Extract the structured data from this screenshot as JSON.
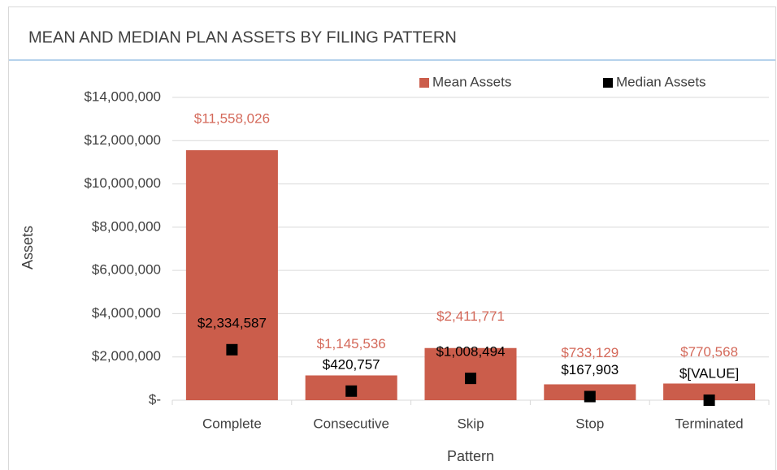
{
  "chart_data": {
    "type": "bar",
    "title": "MEAN AND MEDIAN PLAN ASSETS BY FILING PATTERN",
    "x_label": "Pattern",
    "y_label": "Assets",
    "categories": [
      "Complete",
      "Consecutive",
      "Skip",
      "Stop",
      "Terminated"
    ],
    "series": [
      {
        "name": "Mean Assets",
        "color": "#cb5d4b",
        "label_color": "#d4695a",
        "mark": "bar",
        "values": [
          11558026,
          1145536,
          2411771,
          733129,
          770568
        ],
        "value_labels": [
          "$11,558,026",
          "$1,145,536",
          "$2,411,771",
          "$733,129",
          "$770,568"
        ]
      },
      {
        "name": "Median Assets",
        "color": "#000000",
        "label_color": "#000000",
        "mark": "square",
        "values": [
          2334587,
          420757,
          1008494,
          167903,
          0
        ],
        "value_labels": [
          "$2,334,587",
          "$420,757",
          "$1,008,494",
          "$167,903",
          "$[VALUE]"
        ]
      }
    ],
    "ylim": [
      0,
      14000000
    ],
    "yticks": [
      {
        "value": 0,
        "label": "$-"
      },
      {
        "value": 2000000,
        "label": "$2,000,000"
      },
      {
        "value": 4000000,
        "label": "$4,000,000"
      },
      {
        "value": 6000000,
        "label": "$6,000,000"
      },
      {
        "value": 8000000,
        "label": "$8,000,000"
      },
      {
        "value": 10000000,
        "label": "$10,000,000"
      },
      {
        "value": 12000000,
        "label": "$12,000,000"
      },
      {
        "value": 14000000,
        "label": "$14,000,000"
      }
    ],
    "grid": true,
    "legend": "top-right"
  }
}
